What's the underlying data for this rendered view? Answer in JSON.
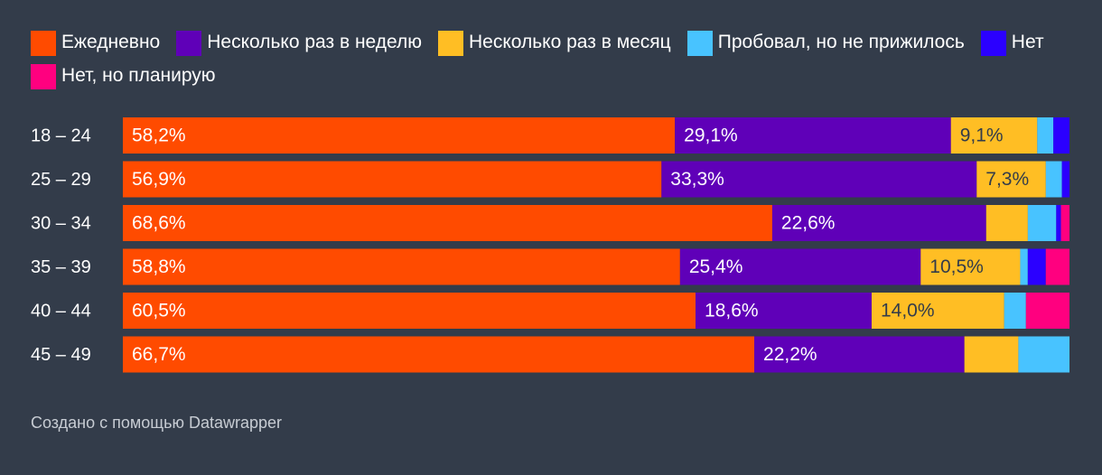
{
  "chart_data": {
    "type": "bar",
    "orientation": "horizontal",
    "stacked": true,
    "categories": [
      "18 – 24",
      "25 – 29",
      "30 – 34",
      "35 – 39",
      "40 – 44",
      "45 – 49"
    ],
    "series": [
      {
        "name": "Ежедневно",
        "color": "#ff4b00",
        "values": [
          58.2,
          56.9,
          68.6,
          58.8,
          60.5,
          66.7
        ]
      },
      {
        "name": "Несколько раз в неделю",
        "color": "#5f00b8",
        "values": [
          29.1,
          33.3,
          22.6,
          25.4,
          18.6,
          22.2
        ]
      },
      {
        "name": "Несколько раз в месяц",
        "color": "#ffbe24",
        "values": [
          9.1,
          7.3,
          4.4,
          10.5,
          14.0,
          5.7
        ]
      },
      {
        "name": "Пробовал, но не прижилось",
        "color": "#48c3ff",
        "values": [
          1.7,
          1.7,
          3.0,
          0.8,
          2.3,
          5.4
        ]
      },
      {
        "name": "Нет",
        "color": "#2b00ff",
        "values": [
          1.7,
          0.8,
          0.5,
          1.9,
          0.0,
          0.0
        ]
      },
      {
        "name": "Нет, но планирую",
        "color": "#ff007f",
        "values": [
          0.0,
          0.0,
          0.9,
          2.5,
          4.6,
          0.0
        ]
      }
    ],
    "data_labels": [
      [
        "58,2%",
        "29,1%",
        "9,1%",
        "",
        "",
        ""
      ],
      [
        "56,9%",
        "33,3%",
        "7,3%",
        "",
        "",
        ""
      ],
      [
        "68,6%",
        "22,6%",
        "",
        "",
        "",
        ""
      ],
      [
        "58,8%",
        "25,4%",
        "10,5%",
        "",
        "",
        ""
      ],
      [
        "60,5%",
        "18,6%",
        "14,0%",
        "",
        "",
        ""
      ],
      [
        "66,7%",
        "22,2%",
        "",
        "",
        "",
        ""
      ]
    ],
    "xlim": [
      0,
      100
    ],
    "title": "",
    "xlabel": "",
    "ylabel": "",
    "legend": "top"
  },
  "footer": {
    "credit": "Создано с помощью Datawrapper"
  }
}
